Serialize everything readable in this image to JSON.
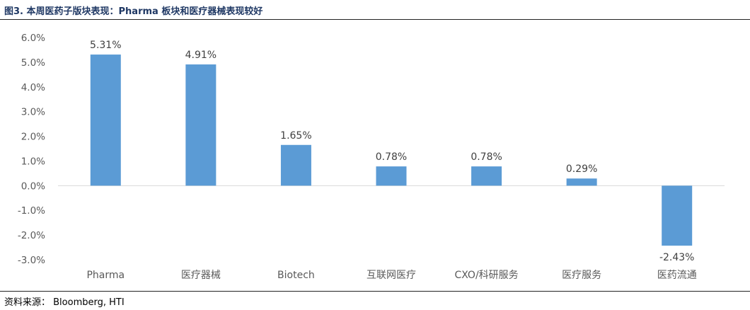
{
  "figure": {
    "title": "图3.   本周医药子版块表现：Pharma 板块和医疗器械表现较好",
    "source": "资料来源：  Bloomberg, HTI"
  },
  "chart_data": {
    "type": "bar",
    "title": "",
    "xlabel": "",
    "ylabel": "",
    "categories": [
      "Pharma",
      "医疗器械",
      "Biotech",
      "互联网医疗",
      "CXO/科研服务",
      "医疗服务",
      "医药流通"
    ],
    "values": [
      5.31,
      4.91,
      1.65,
      0.78,
      0.78,
      0.29,
      -2.43
    ],
    "data_labels": [
      "5.31%",
      "4.91%",
      "1.65%",
      "0.78%",
      "0.78%",
      "0.29%",
      "-2.43%"
    ],
    "yticks": [
      "6.0%",
      "5.0%",
      "4.0%",
      "3.0%",
      "2.0%",
      "1.0%",
      "0.0%",
      "-1.0%",
      "-2.0%",
      "-3.0%"
    ],
    "ylim": [
      -3,
      6
    ],
    "grid": false,
    "legend": "none",
    "bar_color": "#5b9bd5",
    "axis_color": "#d9d9d9"
  }
}
